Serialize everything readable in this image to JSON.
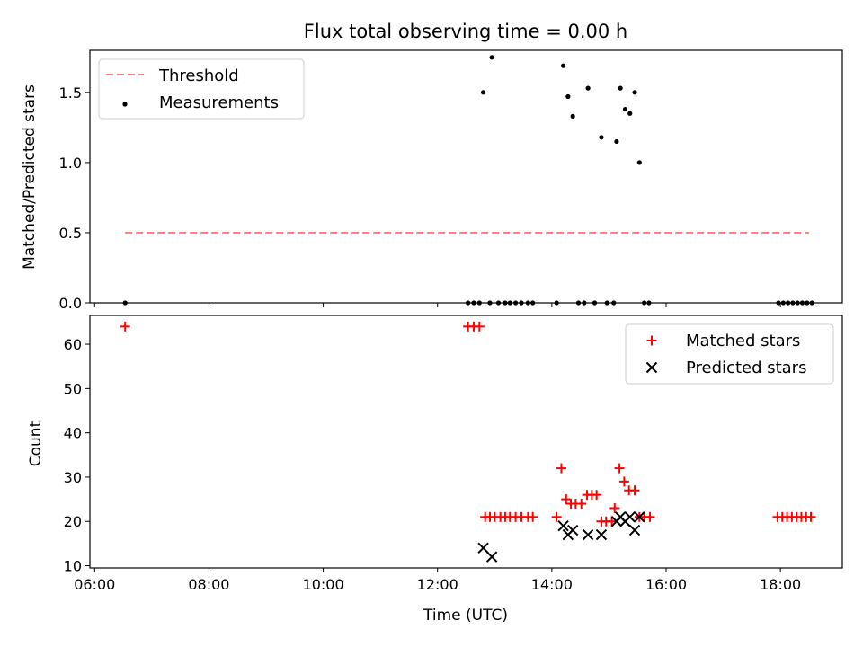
{
  "chart_data": [
    {
      "type": "scatter",
      "title": "Flux total observing time = 0.00 h",
      "xlabel": "",
      "ylabel": "Matched/Predicted stars",
      "xlim": [
        "05:55",
        "19:05"
      ],
      "ylim": [
        0,
        1.8
      ],
      "yticks": [
        0.0,
        0.5,
        1.0,
        1.5
      ],
      "ytick_labels": [
        "0.0",
        "0.5",
        "1.0",
        "1.5"
      ],
      "grid": false,
      "legend": "upper-left",
      "threshold": {
        "name": "Threshold",
        "value": 0.5,
        "x_start": "06:32",
        "x_end": "18:30",
        "color": "#ff7f7f"
      },
      "series": [
        {
          "name": "Measurements",
          "color": "#000000",
          "points": [
            {
              "x": "06:32",
              "y": 0
            },
            {
              "x": "12:32",
              "y": 0
            },
            {
              "x": "12:38",
              "y": 0
            },
            {
              "x": "12:44",
              "y": 0
            },
            {
              "x": "12:48",
              "y": 1.5
            },
            {
              "x": "12:55",
              "y": 0
            },
            {
              "x": "12:57",
              "y": 1.75
            },
            {
              "x": "13:04",
              "y": 0
            },
            {
              "x": "13:11",
              "y": 0
            },
            {
              "x": "13:16",
              "y": 0
            },
            {
              "x": "13:22",
              "y": 0
            },
            {
              "x": "13:28",
              "y": 0
            },
            {
              "x": "13:35",
              "y": 0
            },
            {
              "x": "13:40",
              "y": 0
            },
            {
              "x": "14:05",
              "y": 0
            },
            {
              "x": "14:12",
              "y": 1.69
            },
            {
              "x": "14:17",
              "y": 1.47
            },
            {
              "x": "14:22",
              "y": 1.33
            },
            {
              "x": "14:28",
              "y": 0
            },
            {
              "x": "14:34",
              "y": 0
            },
            {
              "x": "14:38",
              "y": 1.53
            },
            {
              "x": "14:45",
              "y": 0
            },
            {
              "x": "14:52",
              "y": 1.18
            },
            {
              "x": "14:58",
              "y": 0
            },
            {
              "x": "15:05",
              "y": 0
            },
            {
              "x": "15:08",
              "y": 1.15
            },
            {
              "x": "15:12",
              "y": 1.53
            },
            {
              "x": "15:17",
              "y": 1.38
            },
            {
              "x": "15:22",
              "y": 1.35
            },
            {
              "x": "15:27",
              "y": 1.5
            },
            {
              "x": "15:32",
              "y": 1.0
            },
            {
              "x": "15:37",
              "y": 0
            },
            {
              "x": "15:42",
              "y": 0
            },
            {
              "x": "17:58",
              "y": 0
            },
            {
              "x": "18:03",
              "y": 0
            },
            {
              "x": "18:08",
              "y": 0
            },
            {
              "x": "18:13",
              "y": 0
            },
            {
              "x": "18:18",
              "y": 0
            },
            {
              "x": "18:23",
              "y": 0
            },
            {
              "x": "18:28",
              "y": 0
            },
            {
              "x": "18:33",
              "y": 0
            }
          ]
        }
      ]
    },
    {
      "type": "scatter",
      "title": "",
      "xlabel": "Time (UTC)",
      "ylabel": "Count",
      "xlim": [
        "05:55",
        "19:05"
      ],
      "ylim": [
        9.5,
        66.5
      ],
      "xticks": [
        "06:00",
        "08:00",
        "10:00",
        "12:00",
        "14:00",
        "16:00",
        "18:00"
      ],
      "yticks": [
        10,
        20,
        30,
        40,
        50,
        60
      ],
      "ytick_labels": [
        "10",
        "20",
        "30",
        "40",
        "50",
        "60"
      ],
      "grid": false,
      "legend": "upper-right",
      "series": [
        {
          "name": "Matched stars",
          "marker": "plus",
          "color": "#ff0000",
          "points": [
            {
              "x": "06:32",
              "y": 64
            },
            {
              "x": "12:32",
              "y": 64
            },
            {
              "x": "12:38",
              "y": 64
            },
            {
              "x": "12:44",
              "y": 64
            },
            {
              "x": "12:50",
              "y": 21
            },
            {
              "x": "12:55",
              "y": 21
            },
            {
              "x": "13:00",
              "y": 21
            },
            {
              "x": "13:06",
              "y": 21
            },
            {
              "x": "13:11",
              "y": 21
            },
            {
              "x": "13:16",
              "y": 21
            },
            {
              "x": "13:22",
              "y": 21
            },
            {
              "x": "13:28",
              "y": 21
            },
            {
              "x": "13:35",
              "y": 21
            },
            {
              "x": "13:40",
              "y": 21
            },
            {
              "x": "14:05",
              "y": 21
            },
            {
              "x": "14:10",
              "y": 32
            },
            {
              "x": "14:15",
              "y": 25
            },
            {
              "x": "14:20",
              "y": 24
            },
            {
              "x": "14:25",
              "y": 24
            },
            {
              "x": "14:31",
              "y": 24
            },
            {
              "x": "14:37",
              "y": 26
            },
            {
              "x": "14:42",
              "y": 26
            },
            {
              "x": "14:47",
              "y": 26
            },
            {
              "x": "14:52",
              "y": 20
            },
            {
              "x": "14:57",
              "y": 20
            },
            {
              "x": "15:03",
              "y": 20
            },
            {
              "x": "15:06",
              "y": 23
            },
            {
              "x": "15:11",
              "y": 32
            },
            {
              "x": "15:16",
              "y": 29
            },
            {
              "x": "15:21",
              "y": 27
            },
            {
              "x": "15:27",
              "y": 27
            },
            {
              "x": "15:32",
              "y": 21
            },
            {
              "x": "15:37",
              "y": 21
            },
            {
              "x": "15:43",
              "y": 21
            },
            {
              "x": "17:57",
              "y": 21
            },
            {
              "x": "18:02",
              "y": 21
            },
            {
              "x": "18:07",
              "y": 21
            },
            {
              "x": "18:12",
              "y": 21
            },
            {
              "x": "18:17",
              "y": 21
            },
            {
              "x": "18:22",
              "y": 21
            },
            {
              "x": "18:27",
              "y": 21
            },
            {
              "x": "18:32",
              "y": 21
            }
          ]
        },
        {
          "name": "Predicted stars",
          "marker": "x",
          "color": "#000000",
          "points": [
            {
              "x": "12:48",
              "y": 14
            },
            {
              "x": "12:57",
              "y": 12
            },
            {
              "x": "14:12",
              "y": 19
            },
            {
              "x": "14:17",
              "y": 17
            },
            {
              "x": "14:22",
              "y": 18
            },
            {
              "x": "14:38",
              "y": 17
            },
            {
              "x": "14:52",
              "y": 17
            },
            {
              "x": "15:08",
              "y": 20
            },
            {
              "x": "15:12",
              "y": 21
            },
            {
              "x": "15:17",
              "y": 20
            },
            {
              "x": "15:22",
              "y": 21
            },
            {
              "x": "15:27",
              "y": 18
            },
            {
              "x": "15:32",
              "y": 21
            }
          ]
        }
      ]
    }
  ]
}
